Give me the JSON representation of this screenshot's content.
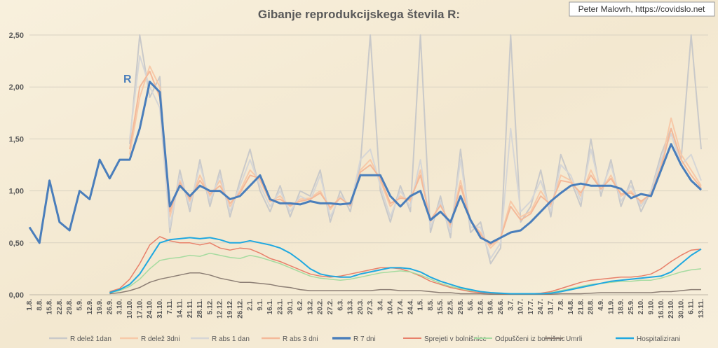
{
  "chart_data": {
    "type": "line",
    "title": "Gibanje reprodukcijskega števila R:",
    "annotation": "R",
    "credit": "Peter Malovrh, https://covidslo.net",
    "categories": [
      "1.8.",
      "8.8.",
      "15.8.",
      "22.8.",
      "29.8.",
      "5.9.",
      "12.9.",
      "19.9.",
      "26.9.",
      "3.10.",
      "10.10.",
      "17.10.",
      "24.10.",
      "31.10.",
      "7.11.",
      "14.11.",
      "21.11.",
      "28.11.",
      "5.12.",
      "12.12.",
      "19.12.",
      "26.12.",
      "2.1.",
      "9.1.",
      "16.1.",
      "23.1.",
      "30.1.",
      "6.2.",
      "13.2.",
      "20.2.",
      "27.2.",
      "6.3.",
      "13.3.",
      "20.3.",
      "27.3.",
      "3.4.",
      "10.4.",
      "17.4.",
      "24.4.",
      "1.5.",
      "8.5.",
      "15.5.",
      "22.5.",
      "29.5.",
      "5.6.",
      "12.6.",
      "19.6.",
      "26.6.",
      "3.7.",
      "10.7.",
      "17.7.",
      "24.7.",
      "31.7.",
      "7.8.",
      "14.8.",
      "21.8.",
      "28.8.",
      "4.9.",
      "11.9.",
      "18.9.",
      "25.9.",
      "2.10.",
      "9.10.",
      "16.10.",
      "23.10.",
      "30.10.",
      "6.11.",
      "13.11."
    ],
    "ylim": [
      0,
      2.5
    ],
    "yticks": [
      {
        "value": 0,
        "label": "0,00"
      },
      {
        "value": 0.5,
        "label": "0,50"
      },
      {
        "value": 1,
        "label": "1,00"
      },
      {
        "value": 1.5,
        "label": "1,50"
      },
      {
        "value": 2,
        "label": "2,00"
      },
      {
        "value": 2.5,
        "label": "2,50"
      }
    ],
    "grid": true,
    "legend": "bottom",
    "series": [
      {
        "name": "R delež 1dan",
        "color": "#c9c9c9",
        "width": 2,
        "values": [
          null,
          null,
          null,
          null,
          null,
          null,
          null,
          null,
          null,
          null,
          1.45,
          2.5,
          1.9,
          2.1,
          0.6,
          1.2,
          0.8,
          1.3,
          0.85,
          1.2,
          0.75,
          1.1,
          1.4,
          1.0,
          0.8,
          1.05,
          0.75,
          1.0,
          0.95,
          1.2,
          0.7,
          1.0,
          0.8,
          1.25,
          2.5,
          1.0,
          0.7,
          1.05,
          0.8,
          2.5,
          0.6,
          0.95,
          0.55,
          1.4,
          0.6,
          0.7,
          0.3,
          0.45,
          2.5,
          0.7,
          0.85,
          1.2,
          0.75,
          1.35,
          1.1,
          0.85,
          1.5,
          0.95,
          1.3,
          0.85,
          1.1,
          0.8,
          1.0,
          1.35,
          1.6,
          1.3,
          2.5,
          1.4
        ]
      },
      {
        "name": "R delež 3dni",
        "color": "#f7c9a8",
        "width": 2,
        "values": [
          null,
          null,
          null,
          null,
          null,
          null,
          null,
          null,
          null,
          null,
          1.35,
          1.9,
          2.2,
          2.0,
          0.75,
          1.1,
          0.9,
          1.15,
          0.95,
          1.1,
          0.85,
          1.0,
          1.2,
          1.1,
          0.9,
          0.95,
          0.85,
          0.92,
          0.93,
          1.0,
          0.82,
          0.95,
          0.85,
          1.2,
          1.3,
          1.1,
          0.85,
          0.95,
          0.9,
          1.2,
          0.7,
          0.88,
          0.65,
          1.1,
          0.7,
          0.6,
          0.45,
          0.55,
          0.9,
          0.75,
          0.8,
          1.0,
          0.85,
          1.15,
          1.1,
          0.95,
          1.2,
          1.0,
          1.15,
          0.95,
          1.0,
          0.88,
          0.98,
          1.25,
          1.7,
          1.35,
          1.2,
          1.05
        ]
      },
      {
        "name": "R abs 1 dan",
        "color": "#d6d6d6",
        "width": 2,
        "values": [
          null,
          null,
          null,
          null,
          null,
          null,
          null,
          null,
          null,
          null,
          1.5,
          2.3,
          2.0,
          1.8,
          0.65,
          1.15,
          0.85,
          1.25,
          0.9,
          1.15,
          0.8,
          1.05,
          1.3,
          1.05,
          0.85,
          1.0,
          0.8,
          0.95,
          0.9,
          1.15,
          0.75,
          0.95,
          0.85,
          1.3,
          1.4,
          1.05,
          0.75,
          1.0,
          0.85,
          1.3,
          0.65,
          0.9,
          0.6,
          1.3,
          0.65,
          0.65,
          0.35,
          0.5,
          1.6,
          0.8,
          0.9,
          1.1,
          0.8,
          1.25,
          1.15,
          0.9,
          1.4,
          1.0,
          1.25,
          0.9,
          1.05,
          0.85,
          1.0,
          1.3,
          1.55,
          1.25,
          1.35,
          1.1
        ]
      },
      {
        "name": "R abs 3 dni",
        "color": "#f4b999",
        "width": 2,
        "values": [
          null,
          null,
          null,
          null,
          null,
          null,
          null,
          null,
          null,
          null,
          1.4,
          2.0,
          2.15,
          1.9,
          0.8,
          1.08,
          0.92,
          1.1,
          0.97,
          1.05,
          0.88,
          0.98,
          1.15,
          1.12,
          0.9,
          0.92,
          0.86,
          0.9,
          0.92,
          0.98,
          0.84,
          0.93,
          0.86,
          1.18,
          1.25,
          1.12,
          0.88,
          0.93,
          0.92,
          1.15,
          0.72,
          0.86,
          0.68,
          1.05,
          0.72,
          0.58,
          0.48,
          0.55,
          0.85,
          0.72,
          0.78,
          0.95,
          0.87,
          1.1,
          1.08,
          0.98,
          1.15,
          1.02,
          1.12,
          0.97,
          0.98,
          0.9,
          0.97,
          1.22,
          1.6,
          1.3,
          1.15,
          1.03
        ]
      },
      {
        "name": "R 7 dni",
        "color": "#4a7ebb",
        "width": 3,
        "values": [
          0.65,
          0.5,
          1.1,
          0.7,
          0.62,
          1.0,
          0.92,
          1.3,
          1.12,
          1.3,
          1.3,
          1.6,
          2.05,
          1.95,
          0.85,
          1.05,
          0.95,
          1.05,
          1.0,
          1.0,
          0.92,
          0.95,
          1.05,
          1.15,
          0.92,
          0.88,
          0.88,
          0.87,
          0.9,
          0.88,
          0.88,
          0.87,
          0.88,
          1.15,
          1.15,
          1.15,
          0.95,
          0.85,
          0.95,
          1.0,
          0.72,
          0.8,
          0.7,
          0.95,
          0.72,
          0.55,
          0.5,
          0.55,
          0.6,
          0.62,
          0.7,
          0.8,
          0.9,
          0.98,
          1.05,
          1.07,
          1.05,
          1.05,
          1.05,
          1.02,
          0.93,
          0.97,
          0.95,
          1.2,
          1.45,
          1.25,
          1.1,
          1.01
        ]
      },
      {
        "name": "Sprejeti v bolnišnice",
        "color": "#e8806a",
        "width": 1.5,
        "values": [
          null,
          null,
          null,
          null,
          null,
          null,
          null,
          null,
          0.03,
          0.06,
          0.15,
          0.3,
          0.48,
          0.56,
          0.52,
          0.5,
          0.5,
          0.48,
          0.5,
          0.45,
          0.43,
          0.45,
          0.44,
          0.4,
          0.35,
          0.32,
          0.28,
          0.24,
          0.2,
          0.18,
          0.17,
          0.18,
          0.2,
          0.22,
          0.24,
          0.26,
          0.26,
          0.25,
          0.22,
          0.18,
          0.13,
          0.1,
          0.07,
          0.05,
          0.03,
          0.02,
          0.015,
          0.01,
          0.01,
          0.01,
          0.01,
          0.015,
          0.03,
          0.06,
          0.09,
          0.12,
          0.14,
          0.15,
          0.16,
          0.17,
          0.17,
          0.18,
          0.2,
          0.25,
          0.32,
          0.38,
          0.43,
          0.44
        ]
      },
      {
        "name": "Odpuščeni iz bolnišnic",
        "color": "#a6dba0",
        "width": 1.5,
        "values": [
          null,
          null,
          null,
          null,
          null,
          null,
          null,
          null,
          0.02,
          0.04,
          0.08,
          0.15,
          0.25,
          0.33,
          0.35,
          0.36,
          0.38,
          0.37,
          0.4,
          0.38,
          0.36,
          0.35,
          0.38,
          0.36,
          0.33,
          0.3,
          0.26,
          0.22,
          0.18,
          0.16,
          0.15,
          0.14,
          0.15,
          0.17,
          0.19,
          0.21,
          0.22,
          0.23,
          0.22,
          0.19,
          0.15,
          0.11,
          0.08,
          0.06,
          0.04,
          0.03,
          0.02,
          0.01,
          0.01,
          0.01,
          0.005,
          0.01,
          0.02,
          0.04,
          0.06,
          0.08,
          0.1,
          0.11,
          0.12,
          0.13,
          0.13,
          0.14,
          0.14,
          0.16,
          0.19,
          0.22,
          0.24,
          0.25
        ]
      },
      {
        "name": "Umrli",
        "color": "#8c7e74",
        "width": 1.5,
        "values": [
          null,
          null,
          null,
          null,
          null,
          null,
          null,
          null,
          0.01,
          0.02,
          0.04,
          0.07,
          0.12,
          0.15,
          0.17,
          0.19,
          0.21,
          0.21,
          0.19,
          0.16,
          0.14,
          0.12,
          0.12,
          0.11,
          0.1,
          0.08,
          0.07,
          0.05,
          0.04,
          0.04,
          0.04,
          0.04,
          0.04,
          0.04,
          0.04,
          0.05,
          0.05,
          0.04,
          0.04,
          0.04,
          0.03,
          0.02,
          0.02,
          0.01,
          0.01,
          0.01,
          0.005,
          0.005,
          0.005,
          0.005,
          0.005,
          0.005,
          0.005,
          0.01,
          0.01,
          0.01,
          0.015,
          0.02,
          0.02,
          0.02,
          0.02,
          0.02,
          0.02,
          0.03,
          0.03,
          0.04,
          0.05,
          0.05
        ]
      },
      {
        "name": "Hospitalizirani",
        "color": "#1fa8e0",
        "width": 2,
        "values": [
          null,
          null,
          null,
          null,
          null,
          null,
          null,
          null,
          0.02,
          0.05,
          0.1,
          0.2,
          0.35,
          0.5,
          0.53,
          0.54,
          0.55,
          0.54,
          0.55,
          0.53,
          0.5,
          0.5,
          0.52,
          0.5,
          0.48,
          0.45,
          0.4,
          0.33,
          0.25,
          0.2,
          0.18,
          0.17,
          0.17,
          0.2,
          0.22,
          0.24,
          0.26,
          0.26,
          0.25,
          0.22,
          0.17,
          0.13,
          0.1,
          0.07,
          0.05,
          0.03,
          0.02,
          0.015,
          0.01,
          0.01,
          0.01,
          0.01,
          0.015,
          0.03,
          0.05,
          0.07,
          0.09,
          0.11,
          0.13,
          0.14,
          0.15,
          0.16,
          0.17,
          0.18,
          0.22,
          0.3,
          0.38,
          0.44
        ]
      }
    ]
  }
}
